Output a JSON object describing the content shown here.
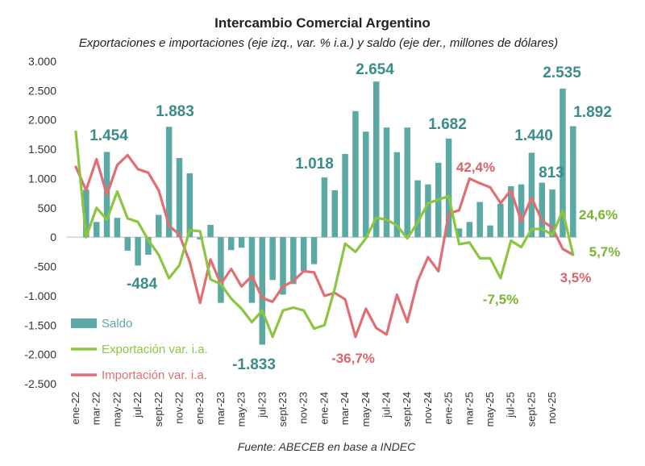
{
  "chart_data": {
    "type": "bar",
    "title": "Intercambio Comercial Argentino",
    "subtitle": "Exportaciones e importaciones (eje izq., var. % i.a.) y saldo (eje der., millones de dólares)",
    "source": "Fuente: ABECEB en base a INDEC",
    "ylim": [
      -2500,
      3000
    ],
    "yticks": [
      3000,
      2500,
      2000,
      1500,
      1000,
      500,
      0,
      -500,
      -1000,
      -1500,
      -2000,
      -2500
    ],
    "ytick_labels": [
      "3.000",
      "2.500",
      "2.000",
      "1.500",
      "1.000",
      "500",
      "0",
      "-500",
      "-1.000",
      "-1.500",
      "-2.000",
      "-2.500"
    ],
    "x_tick_labels": [
      "ene-22",
      "mar-22",
      "may-22",
      "jul-22",
      "sept-22",
      "nov-22",
      "ene-23",
      "mar-23",
      "may-23",
      "jul-23",
      "sept-23",
      "nov-23",
      "ene-24",
      "mar-24",
      "may-24",
      "jul-24",
      "sept-24",
      "nov-24",
      "ene-25",
      "mar-25",
      "may-25",
      "jul-25",
      "sept-25",
      "nov-25"
    ],
    "grid": false,
    "legend_position": "bottom-left",
    "colors": {
      "saldo": "#5aa9a5",
      "exportacion": "#8cc53f",
      "importacion": "#e06e73",
      "saldo_label": "#3a8c88",
      "export_label": "#7ab530",
      "import_label": "#d9646a"
    },
    "series": [
      {
        "name": "Saldo",
        "type": "bar",
        "values": [
          0,
          810,
          260,
          1454,
          330,
          -230,
          -484,
          -300,
          380,
          1883,
          1350,
          1090,
          -40,
          210,
          -1120,
          -220,
          -180,
          -1120,
          -1833,
          -730,
          -980,
          -800,
          -580,
          -460,
          1018,
          800,
          1420,
          2150,
          1800,
          2654,
          1870,
          1450,
          1870,
          970,
          900,
          1270,
          1682,
          150,
          260,
          600,
          200,
          570,
          870,
          900,
          1440,
          930,
          813,
          2535,
          1892
        ]
      },
      {
        "name": "Exportación var. i.a.",
        "type": "line",
        "values": [
          1800,
          0,
          500,
          300,
          780,
          320,
          260,
          -50,
          -300,
          -700,
          -480,
          120,
          100,
          -720,
          -800,
          -1050,
          -1220,
          -1450,
          -1250,
          -1700,
          -1250,
          -1200,
          -1250,
          -1560,
          -1500,
          -870,
          -110,
          -250,
          -20,
          330,
          300,
          200,
          -20,
          250,
          580,
          640,
          700,
          -120,
          -90,
          -360,
          -360,
          -700,
          -60,
          -170,
          140,
          140,
          40,
          450,
          -300
        ]
      },
      {
        "name": "Importación var. i.a.",
        "type": "line",
        "values": [
          1200,
          800,
          1330,
          720,
          1230,
          1400,
          1160,
          1100,
          800,
          200,
          40,
          -420,
          -1120,
          -380,
          -800,
          -540,
          -840,
          -660,
          -1040,
          -1100,
          -840,
          -750,
          -580,
          -600,
          -1000,
          -950,
          -1060,
          -1700,
          -1220,
          -1550,
          -1660,
          -980,
          -1450,
          -750,
          -340,
          -580,
          400,
          460,
          1000,
          920,
          850,
          580,
          800,
          270,
          670,
          280,
          160,
          -200,
          -300
        ]
      }
    ],
    "annotations": [
      {
        "text": "1.454",
        "series": "Saldo",
        "index": 3
      },
      {
        "text": "1.883",
        "series": "Saldo",
        "index": 9
      },
      {
        "text": "-484",
        "series": "Saldo",
        "index": 6
      },
      {
        "text": "-1.833",
        "series": "Saldo",
        "index": 18
      },
      {
        "text": "1.018",
        "series": "Saldo",
        "index": 24
      },
      {
        "text": "2.654",
        "series": "Saldo",
        "index": 29
      },
      {
        "text": "1.682",
        "series": "Saldo",
        "index": 36
      },
      {
        "text": "1.440",
        "series": "Saldo",
        "index": 44
      },
      {
        "text": "813",
        "series": "Saldo",
        "index": 46
      },
      {
        "text": "2.535",
        "series": "Saldo",
        "index": 47
      },
      {
        "text": "1.892",
        "series": "Saldo",
        "index": 48
      },
      {
        "text": "-36,7%",
        "series": "Importación var. i.a.",
        "index": 27
      },
      {
        "text": "42,4%",
        "series": "Importación var. i.a.",
        "index": 38
      },
      {
        "text": "3,5%",
        "series": "Importación var. i.a.",
        "index": 48
      },
      {
        "text": "-7,5%",
        "series": "Exportación var. i.a.",
        "index": 41
      },
      {
        "text": "24,6%",
        "series": "Exportación var. i.a.",
        "index": 47
      },
      {
        "text": "5,7%",
        "series": "Exportación var. i.a.",
        "index": 48
      }
    ]
  }
}
